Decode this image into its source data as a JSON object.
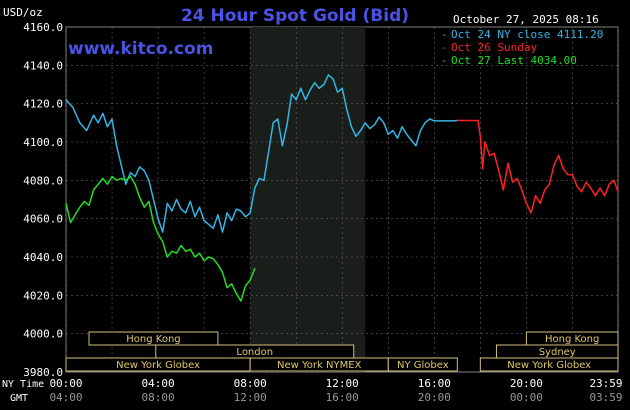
{
  "chart_data": {
    "type": "line",
    "title": "24 Hour Spot Gold (Bid)",
    "ylabel": "USD/oz",
    "watermark": "www.kitco.com",
    "timestamp": "October 27, 2025 08:16",
    "ylim": [
      3980,
      4160
    ],
    "yticks": [
      "4160.0",
      "4140.0",
      "4120.0",
      "4100.0",
      "4080.0",
      "4060.0",
      "4040.0",
      "4020.0",
      "4000.0",
      "3980.0"
    ],
    "grid": true,
    "legend_position": "top-right",
    "x_row_labels": {
      "ny": "NY Time",
      "gmt": "GMT"
    },
    "xticks_ny": [
      "00:00",
      "04:00",
      "08:00",
      "12:00",
      "16:00",
      "20:00",
      "23:59"
    ],
    "xticks_gmt": [
      "04:00",
      "08:00",
      "12:00",
      "16:00",
      "20:00",
      "00:00",
      "03:59"
    ],
    "sessions": [
      {
        "label": "Hong Kong",
        "row": 0,
        "start": 1.0,
        "end": 6.6
      },
      {
        "label": "London",
        "row": 1,
        "start": 3.9,
        "end": 12.5
      },
      {
        "label": "New York Globex",
        "row": 2,
        "start": 0.0,
        "end": 8.0
      },
      {
        "label": "New York NYMEX",
        "row": 2,
        "start": 8.0,
        "end": 14.0
      },
      {
        "label": "NY Globex",
        "row": 2,
        "start": 14.0,
        "end": 17.0
      },
      {
        "label": "Hong Kong",
        "row": 0,
        "start": 20.0,
        "end": 23.98
      },
      {
        "label": "Sydney",
        "row": 1,
        "start": 18.7,
        "end": 23.98
      },
      {
        "label": "New York Globex",
        "row": 2,
        "start": 18.0,
        "end": 23.98
      }
    ],
    "colors": {
      "background": "#000000",
      "plot": "#000000",
      "shade": "#1a1e1a",
      "grid": "#666666",
      "axis_text": "#ffffff",
      "title": "#4b52e6",
      "session_bg": "#000000",
      "session_border": "#d2c07a",
      "session_text": "#e0c86a"
    },
    "series": [
      {
        "name": "Oct 24 NY close 4111.20",
        "color": "#33b5e5",
        "x": [
          0.0,
          0.3,
          0.6,
          0.9,
          1.2,
          1.4,
          1.6,
          1.8,
          2.0,
          2.2,
          2.4,
          2.6,
          2.8,
          3.0,
          3.2,
          3.4,
          3.6,
          3.8,
          4.0,
          4.2,
          4.4,
          4.6,
          4.8,
          5.0,
          5.2,
          5.4,
          5.6,
          5.8,
          6.0,
          6.2,
          6.4,
          6.6,
          6.8,
          7.0,
          7.2,
          7.4,
          7.6,
          7.8,
          8.0,
          8.2,
          8.4,
          8.6,
          8.8,
          9.0,
          9.2,
          9.4,
          9.6,
          9.8,
          10.0,
          10.2,
          10.4,
          10.6,
          10.8,
          11.0,
          11.2,
          11.4,
          11.6,
          11.8,
          12.0,
          12.2,
          12.4,
          12.6,
          12.8,
          13.0,
          13.2,
          13.4,
          13.6,
          13.8,
          14.0,
          14.2,
          14.4,
          14.6,
          14.8,
          15.0,
          15.2,
          15.4,
          15.6,
          15.8,
          16.0,
          16.2,
          16.4,
          16.6,
          16.8,
          17.0
        ],
        "y": [
          4122,
          4118,
          4110,
          4106,
          4114,
          4110,
          4115,
          4108,
          4112,
          4098,
          4088,
          4078,
          4084,
          4082,
          4087,
          4085,
          4080,
          4070,
          4060,
          4053,
          4068,
          4064,
          4070,
          4065,
          4063,
          4069,
          4061,
          4066,
          4059,
          4057,
          4055,
          4062,
          4053,
          4063,
          4059,
          4065,
          4064,
          4061,
          4063,
          4076,
          4081,
          4080,
          4095,
          4110,
          4112,
          4098,
          4109,
          4125,
          4122,
          4128,
          4122,
          4127,
          4131,
          4128,
          4130,
          4135,
          4133,
          4126,
          4128,
          4117,
          4108,
          4103,
          4106,
          4110,
          4107,
          4109,
          4113,
          4110,
          4104,
          4106,
          4102,
          4108,
          4104,
          4101,
          4098,
          4106,
          4110,
          4112,
          4111,
          4111,
          4111,
          4111,
          4111,
          4111.2
        ]
      },
      {
        "name": "Oct 26 Sunday",
        "color": "#ff2222",
        "x": [
          17.0,
          17.3,
          17.6,
          17.9,
          18.0,
          18.1,
          18.2,
          18.4,
          18.6,
          18.8,
          19.0,
          19.2,
          19.4,
          19.6,
          19.8,
          20.0,
          20.2,
          20.4,
          20.6,
          20.8,
          21.0,
          21.2,
          21.4,
          21.6,
          21.8,
          22.0,
          22.2,
          22.4,
          22.6,
          22.8,
          23.0,
          23.2,
          23.4,
          23.6,
          23.8,
          23.98
        ],
        "y": [
          4111.2,
          4111.2,
          4111.2,
          4111.2,
          4103,
          4086,
          4100,
          4093,
          4094,
          4085,
          4075,
          4089,
          4079,
          4081,
          4075,
          4068,
          4063,
          4072,
          4068,
          4075,
          4078,
          4088,
          4093,
          4086,
          4083,
          4083,
          4077,
          4074,
          4079,
          4076,
          4072,
          4076,
          4072,
          4078,
          4080,
          4074
        ]
      },
      {
        "name": "Oct 27 Last 4034.00",
        "color": "#22dd22",
        "x": [
          0.0,
          0.2,
          0.4,
          0.6,
          0.8,
          1.0,
          1.2,
          1.4,
          1.6,
          1.8,
          2.0,
          2.2,
          2.4,
          2.6,
          2.8,
          3.0,
          3.2,
          3.4,
          3.6,
          3.8,
          4.0,
          4.2,
          4.4,
          4.6,
          4.8,
          5.0,
          5.2,
          5.4,
          5.6,
          5.8,
          6.0,
          6.2,
          6.4,
          6.6,
          6.8,
          7.0,
          7.2,
          7.4,
          7.6,
          7.8,
          8.0,
          8.2
        ],
        "y": [
          4068,
          4058,
          4062,
          4066,
          4069,
          4067,
          4075,
          4078,
          4081,
          4078,
          4082,
          4080,
          4081,
          4080,
          4082,
          4078,
          4071,
          4066,
          4069,
          4058,
          4052,
          4048,
          4040,
          4043,
          4042,
          4046,
          4043,
          4044,
          4040,
          4042,
          4038,
          4040,
          4039,
          4036,
          4032,
          4024,
          4026,
          4021,
          4017,
          4025,
          4028,
          4034
        ]
      }
    ]
  }
}
